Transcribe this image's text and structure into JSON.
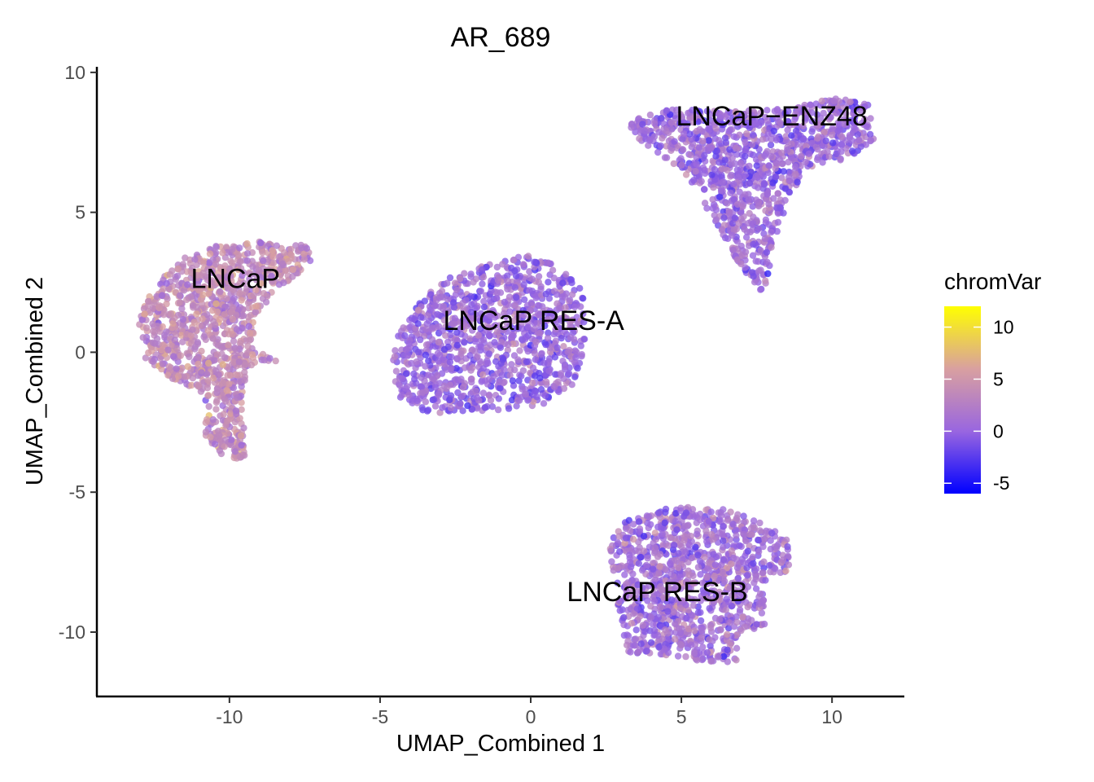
{
  "chart_data": {
    "type": "scatter",
    "title": "AR_689",
    "xlabel": "UMAP_Combined 1",
    "ylabel": "UMAP_Combined 2",
    "xlim": [
      -14.4,
      12.4
    ],
    "ylim": [
      -12.3,
      10.2
    ],
    "x_ticks": [
      {
        "value": -10,
        "label": "-10"
      },
      {
        "value": -5,
        "label": "-5"
      },
      {
        "value": 0,
        "label": "0"
      },
      {
        "value": 5,
        "label": "5"
      },
      {
        "value": 10,
        "label": "10"
      }
    ],
    "y_ticks": [
      {
        "value": -10,
        "label": "-10"
      },
      {
        "value": -5,
        "label": "-5"
      },
      {
        "value": 0,
        "label": "0"
      },
      {
        "value": 5,
        "label": "5"
      },
      {
        "value": 10,
        "label": "10"
      }
    ],
    "grid": false,
    "color_scale": {
      "title": "chromVar",
      "range": [
        -6,
        12
      ],
      "colors": [
        "#0000ff",
        "#9966e0",
        "#d9a0a0",
        "#ffff00"
      ],
      "ticks": [
        {
          "value": 10,
          "label": "10"
        },
        {
          "value": 5,
          "label": "5"
        },
        {
          "value": 0,
          "label": "0"
        },
        {
          "value": -5,
          "label": "-5"
        }
      ],
      "legend_position": "right"
    },
    "clusters": [
      {
        "label": "LNCaP",
        "label_pos": [
          -9.8,
          2.3
        ],
        "mean_value": 3.5,
        "shape": [
          [
            -12.8,
            1.8
          ],
          [
            -12.2,
            2.8
          ],
          [
            -11.2,
            3.6
          ],
          [
            -10,
            3.9
          ],
          [
            -8.6,
            4.0
          ],
          [
            -7.4,
            3.8
          ],
          [
            -7.3,
            3.2
          ],
          [
            -8.2,
            2.4
          ],
          [
            -9.2,
            1.3
          ],
          [
            -9.2,
            0.3
          ],
          [
            -8.8,
            0.0
          ],
          [
            -8.4,
            -0.3
          ],
          [
            -9.0,
            -0.4
          ],
          [
            -9.4,
            -0.8
          ],
          [
            -9.6,
            -2.0
          ],
          [
            -9.4,
            -3.8
          ],
          [
            -10.2,
            -3.8
          ],
          [
            -10.8,
            -3.0
          ],
          [
            -10.8,
            -1.5
          ],
          [
            -12.0,
            -0.9
          ],
          [
            -12.8,
            -0.2
          ],
          [
            -13.0,
            1.0
          ]
        ]
      },
      {
        "label": "LNCaP RES-A",
        "label_pos": [
          0.1,
          0.8
        ],
        "mean_value": 0.5,
        "shape": [
          [
            -4.4,
            0.6
          ],
          [
            -4.0,
            1.8
          ],
          [
            -2.8,
            2.6
          ],
          [
            -1.8,
            3.1
          ],
          [
            -0.2,
            3.5
          ],
          [
            1.2,
            3.0
          ],
          [
            1.8,
            2.0
          ],
          [
            1.8,
            0.2
          ],
          [
            1.4,
            -1.2
          ],
          [
            0.4,
            -1.9
          ],
          [
            -1.4,
            -2.1
          ],
          [
            -3.4,
            -2.2
          ],
          [
            -4.4,
            -1.6
          ],
          [
            -4.6,
            -0.4
          ]
        ]
      },
      {
        "label": "LNCaP−ENZ48",
        "label_pos": [
          8.0,
          8.1
        ],
        "mean_value": 0.5,
        "shape": [
          [
            3.2,
            8.3
          ],
          [
            4.6,
            8.7
          ],
          [
            6.5,
            8.6
          ],
          [
            8.5,
            8.7
          ],
          [
            10.0,
            9.1
          ],
          [
            11.2,
            8.9
          ],
          [
            11.4,
            7.6
          ],
          [
            10.5,
            6.9
          ],
          [
            9.2,
            6.6
          ],
          [
            8.6,
            5.6
          ],
          [
            8.0,
            3.6
          ],
          [
            7.8,
            2.0
          ],
          [
            7.0,
            3.0
          ],
          [
            6.2,
            4.5
          ],
          [
            5.2,
            6.3
          ],
          [
            4.4,
            7.0
          ],
          [
            3.4,
            7.6
          ]
        ]
      },
      {
        "label": "LNCaP RES-B",
        "label_pos": [
          4.2,
          -8.9
        ],
        "mean_value": 1.0,
        "shape": [
          [
            2.6,
            -6.8
          ],
          [
            3.2,
            -6.0
          ],
          [
            4.8,
            -5.5
          ],
          [
            6.4,
            -5.6
          ],
          [
            8.0,
            -6.2
          ],
          [
            8.6,
            -6.8
          ],
          [
            8.6,
            -7.8
          ],
          [
            7.8,
            -8.2
          ],
          [
            7.8,
            -9.8
          ],
          [
            7.0,
            -10.0
          ],
          [
            6.8,
            -11.2
          ],
          [
            5.4,
            -11.0
          ],
          [
            4.2,
            -10.8
          ],
          [
            3.2,
            -10.8
          ],
          [
            3.0,
            -9.6
          ],
          [
            2.7,
            -8.0
          ]
        ]
      }
    ]
  }
}
